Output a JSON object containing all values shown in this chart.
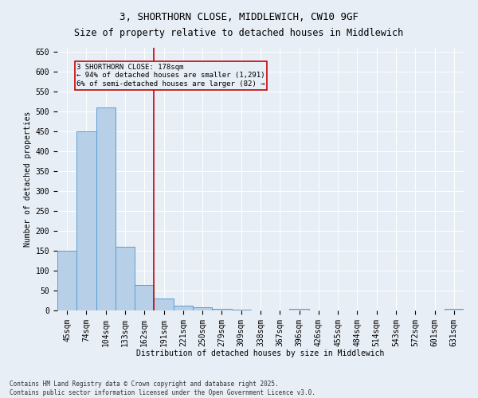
{
  "title": "3, SHORTHORN CLOSE, MIDDLEWICH, CW10 9GF",
  "subtitle": "Size of property relative to detached houses in Middlewich",
  "xlabel": "Distribution of detached houses by size in Middlewich",
  "ylabel": "Number of detached properties",
  "categories": [
    "45sqm",
    "74sqm",
    "104sqm",
    "133sqm",
    "162sqm",
    "191sqm",
    "221sqm",
    "250sqm",
    "279sqm",
    "309sqm",
    "338sqm",
    "367sqm",
    "396sqm",
    "426sqm",
    "455sqm",
    "484sqm",
    "514sqm",
    "543sqm",
    "572sqm",
    "601sqm",
    "631sqm"
  ],
  "values": [
    150,
    450,
    510,
    160,
    65,
    30,
    12,
    8,
    5,
    3,
    0,
    0,
    5,
    0,
    0,
    0,
    0,
    0,
    0,
    0,
    5
  ],
  "bar_color": "#b8cfe8",
  "bar_edge_color": "#5a9fd4",
  "vline_x": 4.5,
  "vline_color": "#cc0000",
  "annotation_text": "3 SHORTHORN CLOSE: 178sqm\n← 94% of detached houses are smaller (1,291)\n6% of semi-detached houses are larger (82) →",
  "ylim": [
    0,
    660
  ],
  "yticks": [
    0,
    50,
    100,
    150,
    200,
    250,
    300,
    350,
    400,
    450,
    500,
    550,
    600,
    650
  ],
  "background_color": "#e8eef5",
  "footer_text": "Contains HM Land Registry data © Crown copyright and database right 2025.\nContains public sector information licensed under the Open Government Licence v3.0.",
  "title_fontsize": 9,
  "subtitle_fontsize": 8.5,
  "axis_fontsize": 7,
  "tick_fontsize": 7,
  "footer_fontsize": 5.5
}
